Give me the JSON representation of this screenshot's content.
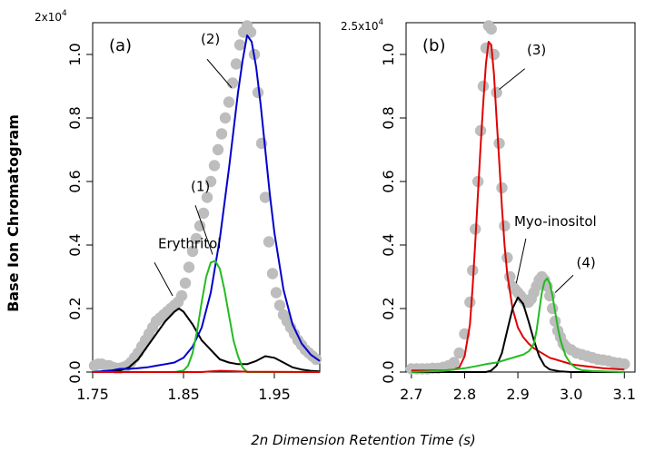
{
  "xlabel": "2n Dimension Retention Time (s)",
  "ylabel": "Base Ion Chromatogram",
  "colors": {
    "data": "#bdbdbd",
    "black": "#000000",
    "blue": "#0000cc",
    "green": "#22bb22",
    "red": "#e00000"
  },
  "chart_data": [
    {
      "type": "line",
      "panel_label": "(a)",
      "y_multiplier": "2x10",
      "y_multiplier_exp": "4",
      "xlim": [
        1.75,
        2.0
      ],
      "ylim": [
        0,
        1.1
      ],
      "xticks": [
        "1.75",
        "1.85",
        "1.95"
      ],
      "xtick_values": [
        1.75,
        1.85,
        1.95
      ],
      "yticks": [
        "0.0",
        "0.2",
        "0.4",
        "0.6",
        "0.8",
        "1.0"
      ],
      "ytick_values": [
        0,
        0.2,
        0.4,
        0.6,
        0.8,
        1.0
      ],
      "scatter": {
        "x": [
          1.752,
          1.756,
          1.76,
          1.764,
          1.768,
          1.772,
          1.776,
          1.78,
          1.784,
          1.788,
          1.792,
          1.796,
          1.8,
          1.804,
          1.808,
          1.812,
          1.816,
          1.82,
          1.824,
          1.828,
          1.832,
          1.836,
          1.84,
          1.844,
          1.848,
          1.852,
          1.856,
          1.86,
          1.864,
          1.868,
          1.872,
          1.876,
          1.88,
          1.884,
          1.888,
          1.892,
          1.896,
          1.9,
          1.904,
          1.908,
          1.912,
          1.916,
          1.92,
          1.924,
          1.928,
          1.932,
          1.936,
          1.94,
          1.944,
          1.948,
          1.952,
          1.956,
          1.96,
          1.964,
          1.968,
          1.972,
          1.976,
          1.98,
          1.984,
          1.988,
          1.992,
          1.996
        ],
        "y": [
          0.02,
          0.025,
          0.025,
          0.02,
          0.02,
          0.015,
          0.012,
          0.012,
          0.015,
          0.02,
          0.03,
          0.045,
          0.06,
          0.08,
          0.1,
          0.12,
          0.14,
          0.16,
          0.17,
          0.18,
          0.19,
          0.2,
          0.21,
          0.22,
          0.24,
          0.28,
          0.33,
          0.38,
          0.42,
          0.46,
          0.5,
          0.55,
          0.6,
          0.65,
          0.7,
          0.75,
          0.8,
          0.85,
          0.91,
          0.97,
          1.03,
          1.07,
          1.09,
          1.07,
          1.0,
          0.88,
          0.72,
          0.55,
          0.41,
          0.31,
          0.25,
          0.21,
          0.18,
          0.16,
          0.14,
          0.12,
          0.1,
          0.085,
          0.07,
          0.06,
          0.05,
          0.04
        ]
      },
      "series": [
        {
          "color": "black",
          "x": [
            1.75,
            1.77,
            1.78,
            1.79,
            1.8,
            1.81,
            1.82,
            1.83,
            1.84,
            1.845,
            1.85,
            1.86,
            1.87,
            1.88,
            1.89,
            1.9,
            1.91,
            1.92,
            1.93,
            1.94,
            1.95,
            1.96,
            1.97,
            1.98,
            1.99,
            2.0
          ],
          "y": [
            0.0,
            0.002,
            0.005,
            0.015,
            0.04,
            0.08,
            0.12,
            0.16,
            0.19,
            0.2,
            0.19,
            0.15,
            0.1,
            0.07,
            0.04,
            0.03,
            0.025,
            0.025,
            0.035,
            0.05,
            0.045,
            0.03,
            0.015,
            0.008,
            0.004,
            0.002
          ]
        },
        {
          "color": "blue",
          "x": [
            1.75,
            1.77,
            1.78,
            1.79,
            1.8,
            1.81,
            1.82,
            1.83,
            1.84,
            1.85,
            1.86,
            1.87,
            1.88,
            1.89,
            1.9,
            1.905,
            1.91,
            1.915,
            1.92,
            1.925,
            1.93,
            1.935,
            1.94,
            1.945,
            1.95,
            1.96,
            1.97,
            1.98,
            1.99,
            2.0
          ],
          "y": [
            0.0,
            0.005,
            0.01,
            0.01,
            0.012,
            0.015,
            0.02,
            0.025,
            0.03,
            0.045,
            0.08,
            0.14,
            0.25,
            0.42,
            0.64,
            0.76,
            0.88,
            0.98,
            1.06,
            1.04,
            0.96,
            0.84,
            0.7,
            0.56,
            0.44,
            0.26,
            0.15,
            0.09,
            0.055,
            0.035
          ]
        },
        {
          "color": "green",
          "x": [
            1.75,
            1.84,
            1.85,
            1.855,
            1.86,
            1.865,
            1.87,
            1.875,
            1.88,
            1.885,
            1.89,
            1.895,
            1.9,
            1.905,
            1.91,
            1.915,
            1.92,
            2.0
          ],
          "y": [
            0.0,
            0.0,
            0.005,
            0.02,
            0.06,
            0.13,
            0.22,
            0.3,
            0.345,
            0.35,
            0.325,
            0.26,
            0.18,
            0.1,
            0.05,
            0.015,
            0.0,
            0.0
          ]
        },
        {
          "color": "red",
          "x": [
            1.75,
            1.87,
            1.88,
            1.89,
            1.9,
            1.92,
            2.0
          ],
          "y": [
            0.0,
            0.0,
            0.002,
            0.004,
            0.003,
            0.001,
            0.0
          ]
        }
      ],
      "annotations": [
        {
          "text": "Erythritol",
          "x": 1.822,
          "y": 0.39,
          "lx1": 1.818,
          "ly1": 0.345,
          "lx2": 1.838,
          "ly2": 0.24
        },
        {
          "text": "(1)",
          "x": 1.858,
          "y": 0.57,
          "lx1": 1.863,
          "ly1": 0.525,
          "lx2": 1.882,
          "ly2": 0.37
        },
        {
          "text": "(2)",
          "x": 1.869,
          "y": 1.035,
          "lx1": 1.876,
          "ly1": 0.985,
          "lx2": 1.903,
          "ly2": 0.895
        }
      ]
    },
    {
      "type": "line",
      "panel_label": "(b)",
      "y_multiplier": "2.5x10",
      "y_multiplier_exp": "4",
      "xlim": [
        2.69,
        3.12
      ],
      "ylim": [
        0,
        1.1
      ],
      "xticks": [
        "2.7",
        "2.8",
        "2.9",
        "3.0",
        "3.1"
      ],
      "xtick_values": [
        2.7,
        2.8,
        2.9,
        3.0,
        3.1
      ],
      "yticks": [
        "0.0",
        "0.2",
        "0.4",
        "0.6",
        "0.8",
        "1.0"
      ],
      "ytick_values": [
        0,
        0.2,
        0.4,
        0.6,
        0.8,
        1.0
      ],
      "scatter": {
        "x": [
          2.7,
          2.71,
          2.72,
          2.73,
          2.74,
          2.75,
          2.76,
          2.77,
          2.78,
          2.79,
          2.8,
          2.81,
          2.815,
          2.82,
          2.825,
          2.83,
          2.835,
          2.84,
          2.845,
          2.85,
          2.855,
          2.86,
          2.865,
          2.87,
          2.875,
          2.88,
          2.885,
          2.89,
          2.895,
          2.9,
          2.905,
          2.91,
          2.915,
          2.92,
          2.925,
          2.93,
          2.935,
          2.94,
          2.945,
          2.95,
          2.955,
          2.96,
          2.965,
          2.97,
          2.975,
          2.98,
          2.985,
          2.99,
          3.0,
          3.01,
          3.02,
          3.03,
          3.04,
          3.05,
          3.06,
          3.07,
          3.08,
          3.09,
          3.1
        ],
        "y": [
          0.01,
          0.01,
          0.01,
          0.01,
          0.012,
          0.012,
          0.015,
          0.02,
          0.03,
          0.06,
          0.12,
          0.22,
          0.32,
          0.45,
          0.6,
          0.76,
          0.9,
          1.02,
          1.09,
          1.08,
          1.0,
          0.88,
          0.72,
          0.58,
          0.46,
          0.36,
          0.3,
          0.27,
          0.26,
          0.25,
          0.24,
          0.23,
          0.22,
          0.22,
          0.23,
          0.25,
          0.27,
          0.29,
          0.3,
          0.29,
          0.27,
          0.24,
          0.2,
          0.16,
          0.13,
          0.11,
          0.09,
          0.08,
          0.07,
          0.06,
          0.055,
          0.05,
          0.045,
          0.04,
          0.038,
          0.035,
          0.03,
          0.028,
          0.025
        ]
      },
      "series": [
        {
          "color": "red",
          "x": [
            2.7,
            2.76,
            2.78,
            2.79,
            2.8,
            2.81,
            2.815,
            2.82,
            2.825,
            2.83,
            2.835,
            2.84,
            2.845,
            2.85,
            2.855,
            2.86,
            2.865,
            2.87,
            2.875,
            2.88,
            2.89,
            2.9,
            2.91,
            2.92,
            2.93,
            2.94,
            2.95,
            2.96,
            2.97,
            2.98,
            2.99,
            3.0,
            3.01,
            3.02,
            3.03,
            3.04,
            3.05,
            3.06,
            3.07,
            3.08,
            3.09,
            3.1
          ],
          "y": [
            0.005,
            0.005,
            0.008,
            0.015,
            0.05,
            0.15,
            0.27,
            0.41,
            0.56,
            0.71,
            0.85,
            0.97,
            1.04,
            1.03,
            0.94,
            0.8,
            0.66,
            0.52,
            0.4,
            0.31,
            0.2,
            0.14,
            0.11,
            0.09,
            0.075,
            0.065,
            0.055,
            0.045,
            0.04,
            0.035,
            0.03,
            0.025,
            0.022,
            0.02,
            0.018,
            0.016,
            0.014,
            0.012,
            0.011,
            0.01,
            0.009,
            0.008
          ]
        },
        {
          "color": "black",
          "x": [
            2.7,
            2.84,
            2.85,
            2.86,
            2.87,
            2.88,
            2.89,
            2.9,
            2.91,
            2.92,
            2.93,
            2.94,
            2.95,
            2.96,
            2.98,
            3.0,
            3.1
          ],
          "y": [
            0.0,
            0.0,
            0.005,
            0.02,
            0.06,
            0.13,
            0.2,
            0.235,
            0.215,
            0.16,
            0.1,
            0.05,
            0.02,
            0.008,
            0.002,
            0.0,
            0.0
          ]
        },
        {
          "color": "green",
          "x": [
            2.7,
            2.76,
            2.78,
            2.8,
            2.82,
            2.84,
            2.86,
            2.87,
            2.88,
            2.89,
            2.9,
            2.91,
            2.92,
            2.925,
            2.93,
            2.935,
            2.94,
            2.945,
            2.95,
            2.955,
            2.96,
            2.965,
            2.97,
            2.975,
            2.98,
            2.99,
            3.0,
            3.01,
            3.02,
            3.04,
            3.06,
            3.08,
            3.1
          ],
          "y": [
            0.0,
            0.004,
            0.008,
            0.012,
            0.018,
            0.025,
            0.03,
            0.035,
            0.04,
            0.045,
            0.05,
            0.055,
            0.065,
            0.075,
            0.09,
            0.13,
            0.19,
            0.25,
            0.285,
            0.295,
            0.28,
            0.24,
            0.19,
            0.14,
            0.1,
            0.05,
            0.025,
            0.012,
            0.006,
            0.003,
            0.002,
            0.001,
            0.0
          ]
        }
      ],
      "annotations": [
        {
          "text": "(3)",
          "x": 2.917,
          "y": 1.0,
          "lx1": 2.913,
          "ly1": 0.955,
          "lx2": 2.865,
          "ly2": 0.89
        },
        {
          "text": "Myo-inositol",
          "x": 2.893,
          "y": 0.46,
          "lx1": 2.915,
          "ly1": 0.42,
          "lx2": 2.897,
          "ly2": 0.28
        },
        {
          "text": "(4)",
          "x": 3.01,
          "y": 0.33,
          "lx1": 3.004,
          "ly1": 0.305,
          "lx2": 2.97,
          "ly2": 0.25
        }
      ]
    }
  ]
}
